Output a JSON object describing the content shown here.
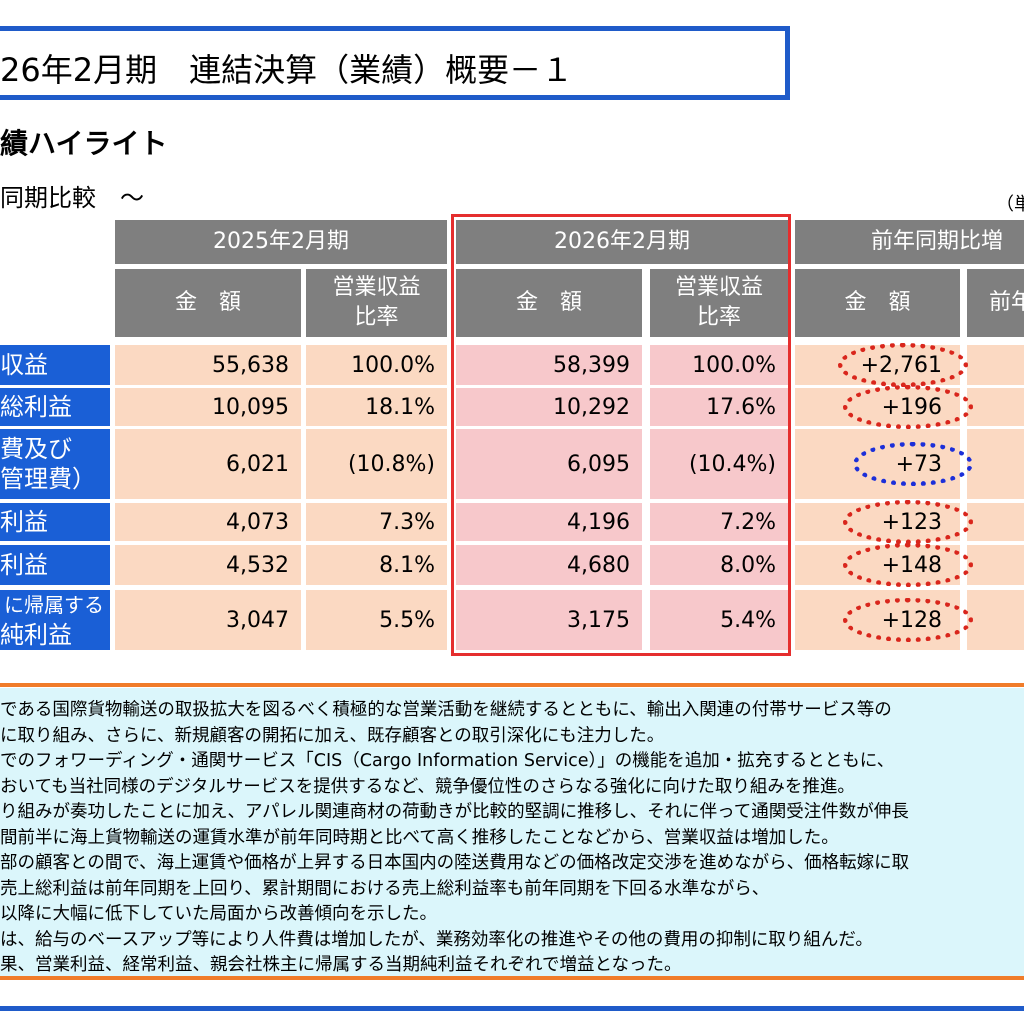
{
  "title": "26年2月期　連結決算（業績）概要－１",
  "section_title": "績ハイライト",
  "sub_title": "同期比較　～",
  "unit": "（単",
  "table": {
    "group_headers": [
      "2025年2月期",
      "2026年2月期",
      "前年同期比増"
    ],
    "col_headers": {
      "amount": "金　額",
      "ratio_line1": "営業収益",
      "ratio_line2": "比率",
      "prev_partial": "前年"
    },
    "rows": [
      {
        "label": [
          "収益"
        ],
        "fy2025_amount": "55,638",
        "fy2025_ratio": "100.0%",
        "fy2026_amount": "58,399",
        "fy2026_ratio": "100.0%",
        "change": "+2,761"
      },
      {
        "label": [
          "総利益"
        ],
        "fy2025_amount": "10,095",
        "fy2025_ratio": "18.1%",
        "fy2026_amount": "10,292",
        "fy2026_ratio": "17.6%",
        "change": "+196"
      },
      {
        "label": [
          "費及び",
          "管理費）"
        ],
        "fy2025_amount": "6,021",
        "fy2025_ratio": "(10.8%)",
        "fy2026_amount": "6,095",
        "fy2026_ratio": "(10.4%)",
        "change": "+73"
      },
      {
        "label": [
          "利益"
        ],
        "fy2025_amount": "4,073",
        "fy2025_ratio": "7.3%",
        "fy2026_amount": "4,196",
        "fy2026_ratio": "7.2%",
        "change": "+123"
      },
      {
        "label": [
          "利益"
        ],
        "fy2025_amount": "4,532",
        "fy2025_ratio": "8.1%",
        "fy2026_amount": "4,680",
        "fy2026_ratio": "8.0%",
        "change": "+148"
      },
      {
        "label": [
          "に帰属する",
          "純利益"
        ],
        "fy2025_amount": "3,047",
        "fy2025_ratio": "5.5%",
        "fy2026_amount": "3,175",
        "fy2026_ratio": "5.4%",
        "change": "+128"
      }
    ]
  },
  "commentary": [
    "である国際貨物輸送の取扱拡大を図るべく積極的な営業活動を継続するとともに、輸出入関連の付帯サービス等の",
    "に取り組み、さらに、新規顧客の開拓に加え、既存顧客との取引深化にも注力した。",
    "でのフォワーディング・通関サービス「CIS（Cargo Information Service）」の機能を追加・拡充するとともに、",
    "おいても当社同様のデジタルサービスを提供するなど、競争優位性のさらなる強化に向けた取り組みを推進。",
    "り組みが奏功したことに加え、アパレル関連商材の荷動きが比較的堅調に推移し、それに伴って通関受注件数が伸長",
    "間前半に海上貨物輸送の運賃水準が前年同時期と比べて高く推移したことなどから、営業収益は増加した。",
    "部の顧客との間で、海上運賃や価格が上昇する日本国内の陸送費用などの価格改定交渉を進めながら、価格転嫁に取",
    "売上総利益は前年同期を上回り、累計期間における売上総利益率も前年同期を下回る水準ながら、",
    "以降に大幅に低下していた局面から改善傾向を示した。",
    "は、給与のベースアップ等により人件費は増加したが、業務効率化の推進やその他の費用の抑制に取り組んだ。",
    "果、営業利益、経常利益、親会社株主に帰属する当期純利益それぞれで増益となった。"
  ]
}
